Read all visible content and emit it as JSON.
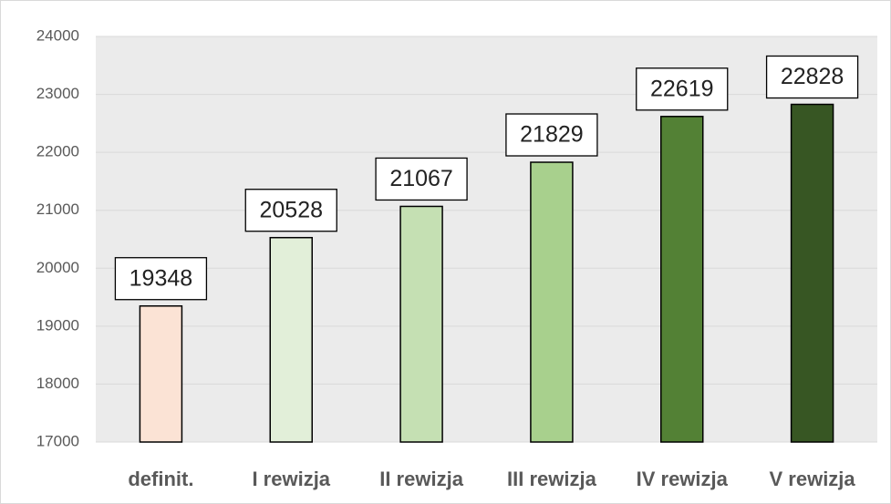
{
  "chart_data": {
    "type": "bar",
    "categories": [
      "definit.",
      "I rewizja",
      "II rewizja",
      "III rewizja",
      "IV rewizja",
      "V rewizja"
    ],
    "values": [
      19348,
      20528,
      21067,
      21829,
      22619,
      22828
    ],
    "colors": [
      "#fbe3d5",
      "#e2efd9",
      "#c5e0b3",
      "#a8d08d",
      "#538135",
      "#375623"
    ],
    "ylim": [
      17000,
      24000
    ],
    "yticks": [
      17000,
      18000,
      19000,
      20000,
      21000,
      22000,
      23000,
      24000
    ],
    "grid": true
  }
}
